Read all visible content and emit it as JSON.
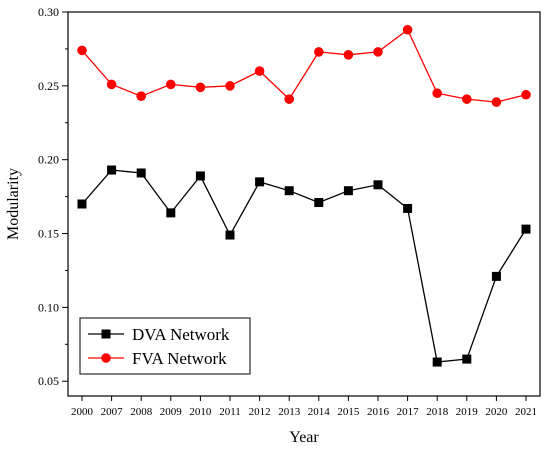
{
  "chart_data": {
    "type": "line",
    "title": "",
    "xlabel": "Year",
    "ylabel": "Modularity",
    "x": [
      "2000",
      "2007",
      "2008",
      "2009",
      "2010",
      "2011",
      "2012",
      "2013",
      "2014",
      "2015",
      "2016",
      "2017",
      "2018",
      "2019",
      "2020",
      "2021"
    ],
    "series": [
      {
        "name": "DVA Network",
        "color": "#000000",
        "marker": "square",
        "values": [
          0.17,
          0.193,
          0.191,
          0.164,
          0.189,
          0.149,
          0.185,
          0.179,
          0.171,
          0.179,
          0.183,
          0.167,
          0.063,
          0.065,
          0.121,
          0.153
        ]
      },
      {
        "name": "FVA Network",
        "color": "#ff0000",
        "marker": "circle",
        "values": [
          0.274,
          0.251,
          0.243,
          0.251,
          0.249,
          0.25,
          0.26,
          0.241,
          0.273,
          0.271,
          0.273,
          0.288,
          0.245,
          0.241,
          0.239,
          0.244
        ]
      }
    ],
    "ylim": [
      0.04,
      0.3
    ],
    "yticks": [
      "0.05",
      "0.10",
      "0.15",
      "0.20",
      "0.25",
      "0.30"
    ],
    "grid": false,
    "legend_position": "bottom-left"
  }
}
